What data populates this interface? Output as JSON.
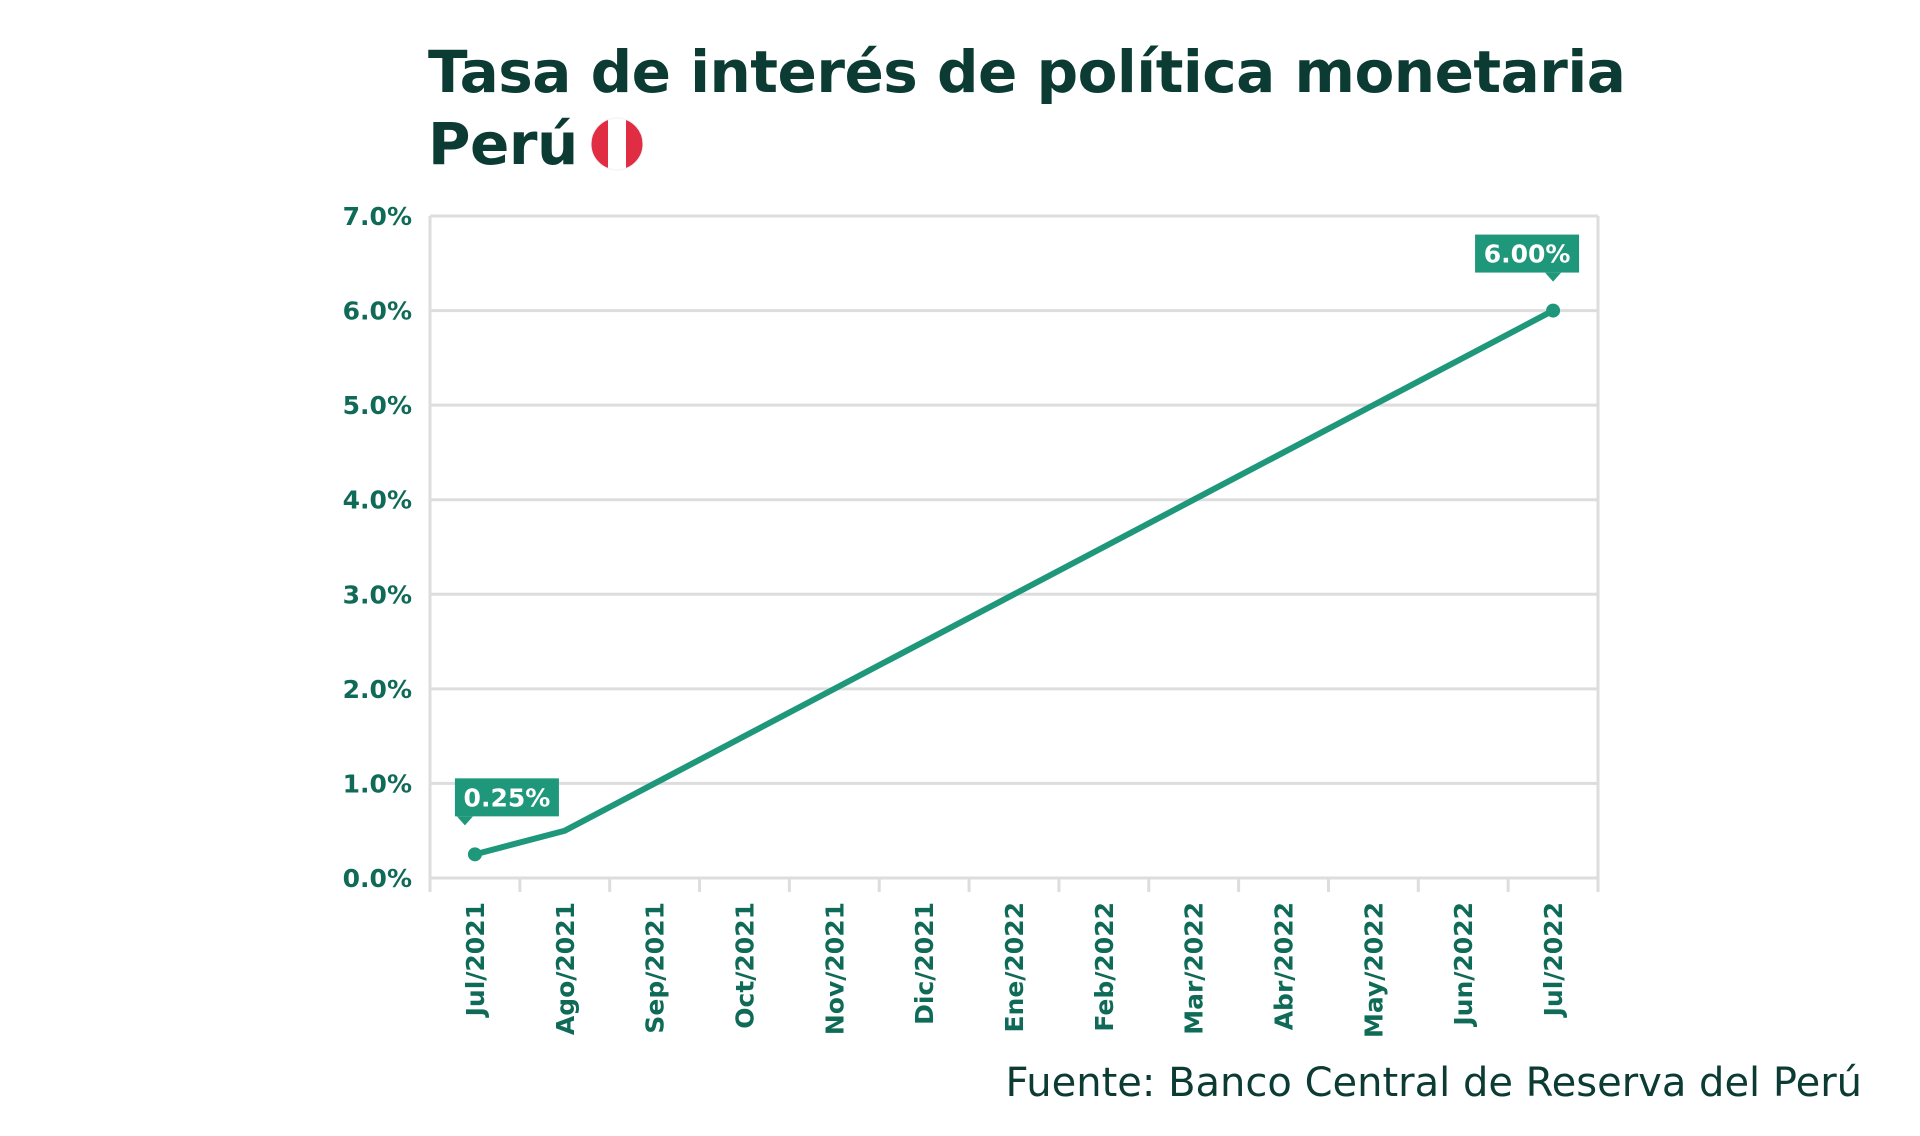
{
  "title_line1": "Tasa de interés de política monetaria",
  "title_line2": "Perú",
  "flag_icon": "peru-flag-icon",
  "source": "Fuente: Banco Central de Reserva del Perú",
  "colors": {
    "line": "#1e977b",
    "title": "#0b3b33",
    "tick": "#0f6b57",
    "grid": "#dddddd",
    "flag_red": "#e02d44"
  },
  "chart_data": {
    "type": "line",
    "categories": [
      "Jul/2021",
      "Ago/2021",
      "Sep/2021",
      "Oct/2021",
      "Nov/2021",
      "Dic/2021",
      "Ene/2022",
      "Feb/2022",
      "Mar/2022",
      "Abr/2022",
      "May/2022",
      "Jun/2022",
      "Jul/2022"
    ],
    "series": [
      {
        "values": [
          0.25,
          0.5,
          1.0,
          1.5,
          2.0,
          2.5,
          3.0,
          3.5,
          4.0,
          4.5,
          5.0,
          5.5,
          6.0
        ]
      }
    ],
    "yticks": [
      "0.0%",
      "1.0%",
      "2.0%",
      "3.0%",
      "4.0%",
      "5.0%",
      "6.0%",
      "7.0%"
    ],
    "ylim": [
      0,
      7
    ],
    "grid": true,
    "annotations": [
      {
        "index": 0,
        "text": "0.25%"
      },
      {
        "index": 12,
        "text": "6.00%"
      }
    ]
  }
}
